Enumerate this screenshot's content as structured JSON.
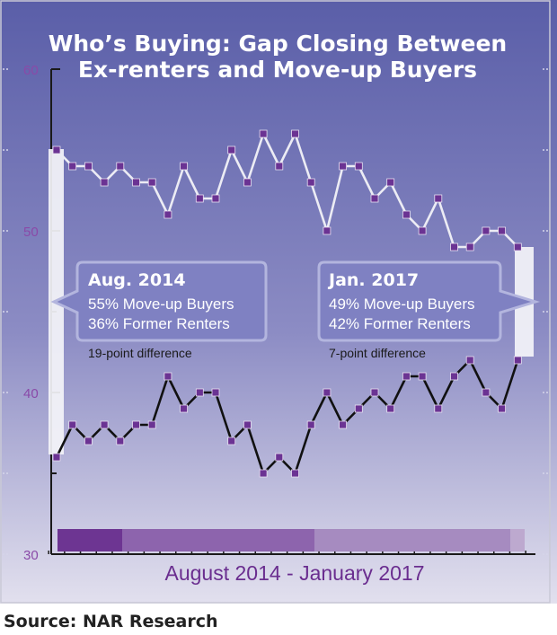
{
  "chart_data": {
    "type": "line",
    "title_line1": "Who’s Buying:  Gap Closing Between",
    "title_line2": "Ex-renters and Move-up Buyers",
    "xlabel": "August 2014 - January 2017",
    "ylim": [
      30,
      60
    ],
    "yticks": [
      "60",
      "50",
      "40",
      "30"
    ],
    "source": "Source: NAR Research",
    "series": [
      {
        "key": "move_up",
        "color": "#ececf4",
        "values": [
          55,
          54,
          54,
          53,
          54,
          53,
          53,
          51,
          54,
          52,
          52,
          55,
          53,
          56,
          54,
          56,
          53,
          50,
          54,
          54,
          52,
          53,
          51,
          50,
          52,
          49,
          49,
          50,
          50,
          49
        ]
      },
      {
        "key": "renters",
        "color": "#111111",
        "values": [
          36,
          38,
          37,
          38,
          37,
          38,
          38,
          41,
          39,
          40,
          40,
          37,
          38,
          35,
          36,
          35,
          38,
          40,
          38,
          39,
          40,
          39,
          41,
          41,
          39,
          41,
          42,
          40,
          39,
          42
        ]
      }
    ],
    "marker_color": "#6b3393",
    "callouts": [
      {
        "title": "Aug. 2014",
        "line1": "55% Move-up Buyers",
        "line2": "36% Former Renters",
        "diff": "19-point difference"
      },
      {
        "title": "Jan. 2017",
        "line1": "49% Move-up Buyers",
        "line2": "42% Former Renters",
        "diff": "7-point difference"
      }
    ]
  }
}
